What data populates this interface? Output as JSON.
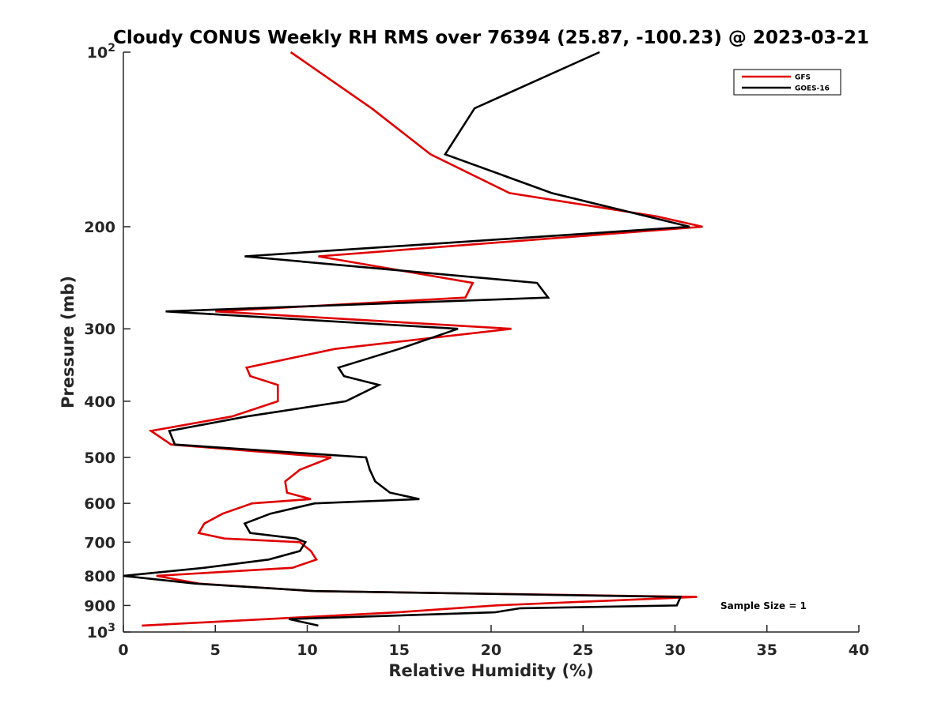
{
  "chart_data": {
    "type": "line",
    "title": "Cloudy CONUS Weekly RH RMS over 76394 (25.87, -100.23) @ 2023-03-21",
    "xlabel": "Relative Humidity (%)",
    "ylabel": "Pressure (mb)",
    "xlim": [
      0,
      40
    ],
    "ylim": [
      100,
      1000
    ],
    "y_scale": "log",
    "y_reversed": true,
    "grid": false,
    "legend_position": "top-right",
    "x_ticks": [
      "0",
      "5",
      "10",
      "15",
      "20",
      "25",
      "30",
      "35",
      "40"
    ],
    "y_ticks": [
      {
        "value": 100,
        "base": "10",
        "exp": "2"
      },
      {
        "value": 200,
        "label": "200"
      },
      {
        "value": 300,
        "label": "300"
      },
      {
        "value": 400,
        "label": "400"
      },
      {
        "value": 500,
        "label": "500"
      },
      {
        "value": 600,
        "label": "600"
      },
      {
        "value": 700,
        "label": "700"
      },
      {
        "value": 800,
        "label": "800"
      },
      {
        "value": 900,
        "label": "900"
      },
      {
        "value": 1000,
        "base": "10",
        "exp": "3"
      }
    ],
    "series": [
      {
        "name": "GFS",
        "color": "#e00000",
        "points": [
          [
            9.1,
            100
          ],
          [
            13.5,
            125
          ],
          [
            16.7,
            150
          ],
          [
            21.0,
            175
          ],
          [
            29.0,
            192
          ],
          [
            31.5,
            200
          ],
          [
            10.6,
            225
          ],
          [
            19.0,
            250
          ],
          [
            18.6,
            265
          ],
          [
            5.0,
            280
          ],
          [
            21.1,
            300
          ],
          [
            11.5,
            325
          ],
          [
            6.7,
            350
          ],
          [
            6.9,
            362
          ],
          [
            8.4,
            375
          ],
          [
            8.4,
            400
          ],
          [
            5.9,
            425
          ],
          [
            1.5,
            450
          ],
          [
            2.6,
            475
          ],
          [
            11.3,
            500
          ],
          [
            9.6,
            525
          ],
          [
            8.8,
            550
          ],
          [
            8.9,
            575
          ],
          [
            10.2,
            590
          ],
          [
            7.0,
            600
          ],
          [
            5.4,
            625
          ],
          [
            4.4,
            650
          ],
          [
            4.1,
            675
          ],
          [
            5.5,
            690
          ],
          [
            9.6,
            700
          ],
          [
            10.2,
            725
          ],
          [
            10.5,
            750
          ],
          [
            9.2,
            775
          ],
          [
            1.8,
            800
          ],
          [
            4.1,
            825
          ],
          [
            10.3,
            850
          ],
          [
            31.2,
            870
          ],
          [
            20.2,
            900
          ],
          [
            14.9,
            925
          ],
          [
            1.0,
            975
          ]
        ]
      },
      {
        "name": "GOES-16",
        "color": "#000000",
        "points": [
          [
            25.9,
            100
          ],
          [
            19.1,
            125
          ],
          [
            17.5,
            150
          ],
          [
            23.3,
            175
          ],
          [
            30.8,
            200
          ],
          [
            6.6,
            225
          ],
          [
            22.5,
            250
          ],
          [
            23.1,
            265
          ],
          [
            2.3,
            280
          ],
          [
            18.2,
            300
          ],
          [
            15.0,
            325
          ],
          [
            11.7,
            350
          ],
          [
            12.0,
            362
          ],
          [
            13.9,
            375
          ],
          [
            12.1,
            400
          ],
          [
            6.7,
            425
          ],
          [
            2.5,
            450
          ],
          [
            2.8,
            475
          ],
          [
            13.2,
            500
          ],
          [
            13.4,
            525
          ],
          [
            13.7,
            550
          ],
          [
            14.5,
            575
          ],
          [
            16.1,
            590
          ],
          [
            10.4,
            600
          ],
          [
            8.0,
            625
          ],
          [
            6.6,
            650
          ],
          [
            6.9,
            675
          ],
          [
            9.4,
            690
          ],
          [
            9.9,
            700
          ],
          [
            9.6,
            725
          ],
          [
            7.9,
            750
          ],
          [
            4.4,
            775
          ],
          [
            0.0,
            800
          ],
          [
            3.9,
            825
          ],
          [
            10.4,
            850
          ],
          [
            30.3,
            870
          ],
          [
            30.1,
            900
          ],
          [
            21.6,
            910
          ],
          [
            20.2,
            925
          ],
          [
            9.0,
            950
          ],
          [
            10.6,
            975
          ]
        ]
      }
    ],
    "annotations": [
      {
        "text": "Sample Size = 1",
        "x": 32.5,
        "y": 900
      }
    ]
  }
}
